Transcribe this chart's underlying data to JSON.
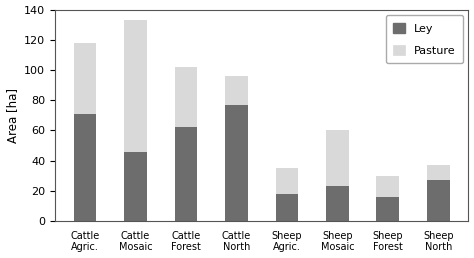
{
  "categories": [
    "Cattle\nAgric.",
    "Cattle\nMosaic",
    "Cattle\nForest",
    "Cattle\nNorth",
    "Sheep\nAgric.",
    "Sheep\nMosaic",
    "Sheep\nForest",
    "Sheep\nNorth"
  ],
  "ley_values": [
    71,
    46,
    62,
    77,
    18,
    23,
    16,
    27
  ],
  "pasture_values": [
    47,
    87,
    40,
    19,
    17,
    37,
    14,
    10
  ],
  "ley_color": "#6d6d6d",
  "pasture_color": "#d9d9d9",
  "ylabel": "Area [ha]",
  "ylim": [
    0,
    140
  ],
  "yticks": [
    0,
    20,
    40,
    60,
    80,
    100,
    120,
    140
  ],
  "legend_labels": [
    "Ley",
    "Pasture"
  ],
  "bar_width": 0.45,
  "title": ""
}
